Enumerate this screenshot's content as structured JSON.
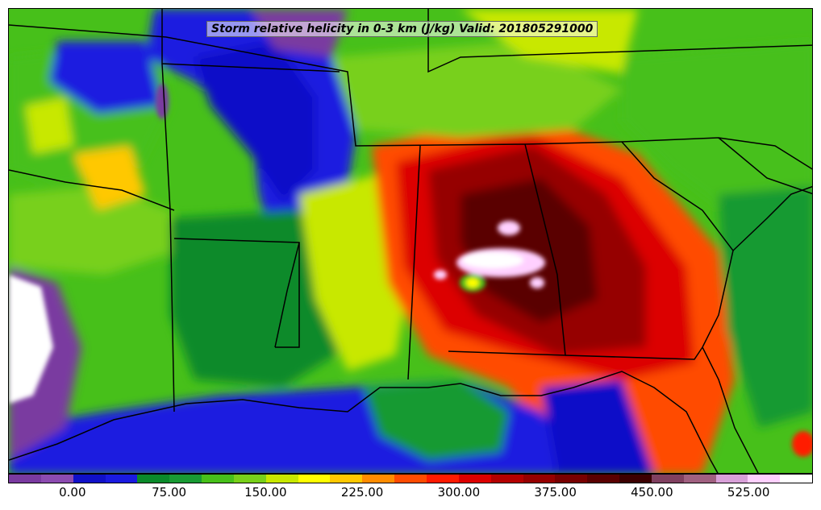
{
  "title": "Storm relative helicity in 0-3 km (J/kg) Valid: 201805291000",
  "colorbar": {
    "colors": [
      "#7a3aa0",
      "#8c4bb0",
      "#1010c8",
      "#1a1ae0",
      "#0a8a2a",
      "#199a33",
      "#47c01a",
      "#78d01a",
      "#c8e800",
      "#ffff00",
      "#ffc800",
      "#ff8c00",
      "#ff4b00",
      "#ff1a00",
      "#dc0000",
      "#b40000",
      "#960000",
      "#780000",
      "#5a0000",
      "#3c0000",
      "#804060",
      "#a06080",
      "#d8a0d8",
      "#ffd0ff",
      "#ffffff"
    ],
    "tick_labels": [
      "0.00",
      "75.00",
      "150.00",
      "225.00",
      "300.00",
      "375.00",
      "450.00",
      "525.00"
    ],
    "tick_values": [
      0,
      75,
      150,
      225,
      300,
      375,
      450,
      525
    ],
    "range": [
      -50,
      575
    ]
  },
  "map": {
    "region": "Southeastern United States and northern Gulf of Mexico",
    "field": "storm relative helicity 0-3 km",
    "units": "J/kg",
    "valid": "201805291000"
  }
}
